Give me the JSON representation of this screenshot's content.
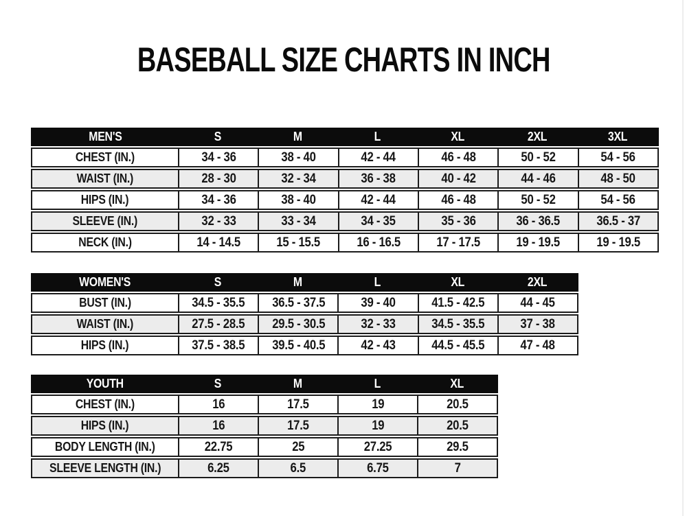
{
  "page": {
    "title": "BASEBALL SIZE CHARTS IN INCH"
  },
  "colors": {
    "header_bg": "#0c0c0c",
    "header_text": "#ffffff",
    "row_bg": "#ffffff",
    "row_alt_bg": "#ececec",
    "border": "#1b1b1b",
    "text": "#161616"
  },
  "tables": [
    {
      "id": "mens",
      "name": "MEN'S",
      "columns": [
        "S",
        "M",
        "L",
        "XL",
        "2XL",
        "3XL"
      ],
      "rows": [
        {
          "label": "CHEST (IN.)",
          "values": [
            "34 - 36",
            "38 - 40",
            "42 - 44",
            "46 - 48",
            "50 - 52",
            "54 - 56"
          ]
        },
        {
          "label": "WAIST (IN.)",
          "values": [
            "28 - 30",
            "32 - 34",
            "36 - 38",
            "40 - 42",
            "44 - 46",
            "48 - 50"
          ]
        },
        {
          "label": "HIPS (IN.)",
          "values": [
            "34 - 36",
            "38 - 40",
            "42 - 44",
            "46 - 48",
            "50 - 52",
            "54 - 56"
          ]
        },
        {
          "label": "SLEEVE (IN.)",
          "values": [
            "32 - 33",
            "33 - 34",
            "34 - 35",
            "35 - 36",
            "36 - 36.5",
            "36.5 - 37"
          ]
        },
        {
          "label": "NECK (IN.)",
          "values": [
            "14 - 14.5",
            "15 - 15.5",
            "16 - 16.5",
            "17 - 17.5",
            "19 - 19.5",
            "19 - 19.5"
          ]
        }
      ]
    },
    {
      "id": "womens",
      "name": "WOMEN'S",
      "columns": [
        "S",
        "M",
        "L",
        "XL",
        "2XL"
      ],
      "rows": [
        {
          "label": "BUST (IN.)",
          "values": [
            "34.5 - 35.5",
            "36.5 - 37.5",
            "39 - 40",
            "41.5 - 42.5",
            "44 - 45"
          ]
        },
        {
          "label": "WAIST (IN.)",
          "values": [
            "27.5 - 28.5",
            "29.5 - 30.5",
            "32 - 33",
            "34.5 - 35.5",
            "37 - 38"
          ]
        },
        {
          "label": "HIPS (IN.)",
          "values": [
            "37.5 - 38.5",
            "39.5 - 40.5",
            "42 - 43",
            "44.5 - 45.5",
            "47 - 48"
          ]
        }
      ]
    },
    {
      "id": "youth",
      "name": "YOUTH",
      "columns": [
        "S",
        "M",
        "L",
        "XL"
      ],
      "rows": [
        {
          "label": "CHEST (IN.)",
          "values": [
            "16",
            "17.5",
            "19",
            "20.5"
          ]
        },
        {
          "label": "HIPS (IN.)",
          "values": [
            "16",
            "17.5",
            "19",
            "20.5"
          ]
        },
        {
          "label": "BODY LENGTH (IN.)",
          "values": [
            "22.75",
            "25",
            "27.25",
            "29.5"
          ]
        },
        {
          "label": "SLEEVE LENGTH (IN.)",
          "values": [
            "6.25",
            "6.5",
            "6.75",
            "7"
          ]
        }
      ]
    }
  ]
}
